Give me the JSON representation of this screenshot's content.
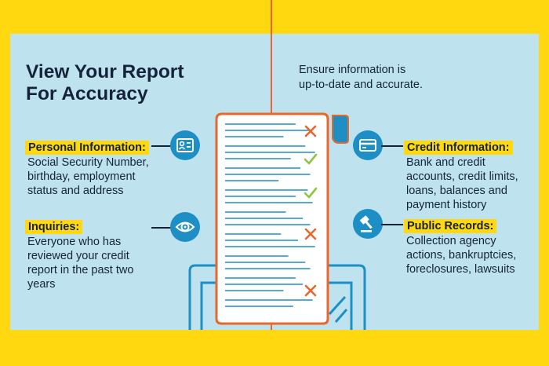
{
  "title_lines": [
    "View Your Report",
    "For Accuracy"
  ],
  "subtitle_lines": [
    "Ensure information is",
    "up-to-date and accurate."
  ],
  "personal": {
    "heading": "Personal Information:",
    "lines": [
      "Social Security Number,",
      "birthday, employment",
      "status and address"
    ]
  },
  "inquiries": {
    "heading": "Inquiries:",
    "lines": [
      "Everyone who has",
      "reviewed your credit",
      "report in the past two",
      "years"
    ]
  },
  "credit": {
    "heading": "Credit Information:",
    "lines": [
      "Bank and credit",
      "accounts, credit limits,",
      "loans, balances and",
      "payment history"
    ]
  },
  "public": {
    "heading": "Public Records:",
    "lines": [
      "Collection agency",
      "actions, bankruptcies,",
      "foreclosures, lawsuits"
    ]
  },
  "icons": {
    "personal": "id-card-icon",
    "inquiries": "eye-icon",
    "credit": "credit-card-icon",
    "public": "gavel-icon"
  },
  "document_marks": [
    "cross",
    "check",
    "check",
    "cross",
    "cross"
  ],
  "colors": {
    "background": "#FFD80F",
    "panel": "#BEE3EE",
    "accent_orange": "#E8672C",
    "accent_blue": "#1D8FC4",
    "text": "#14233B"
  }
}
